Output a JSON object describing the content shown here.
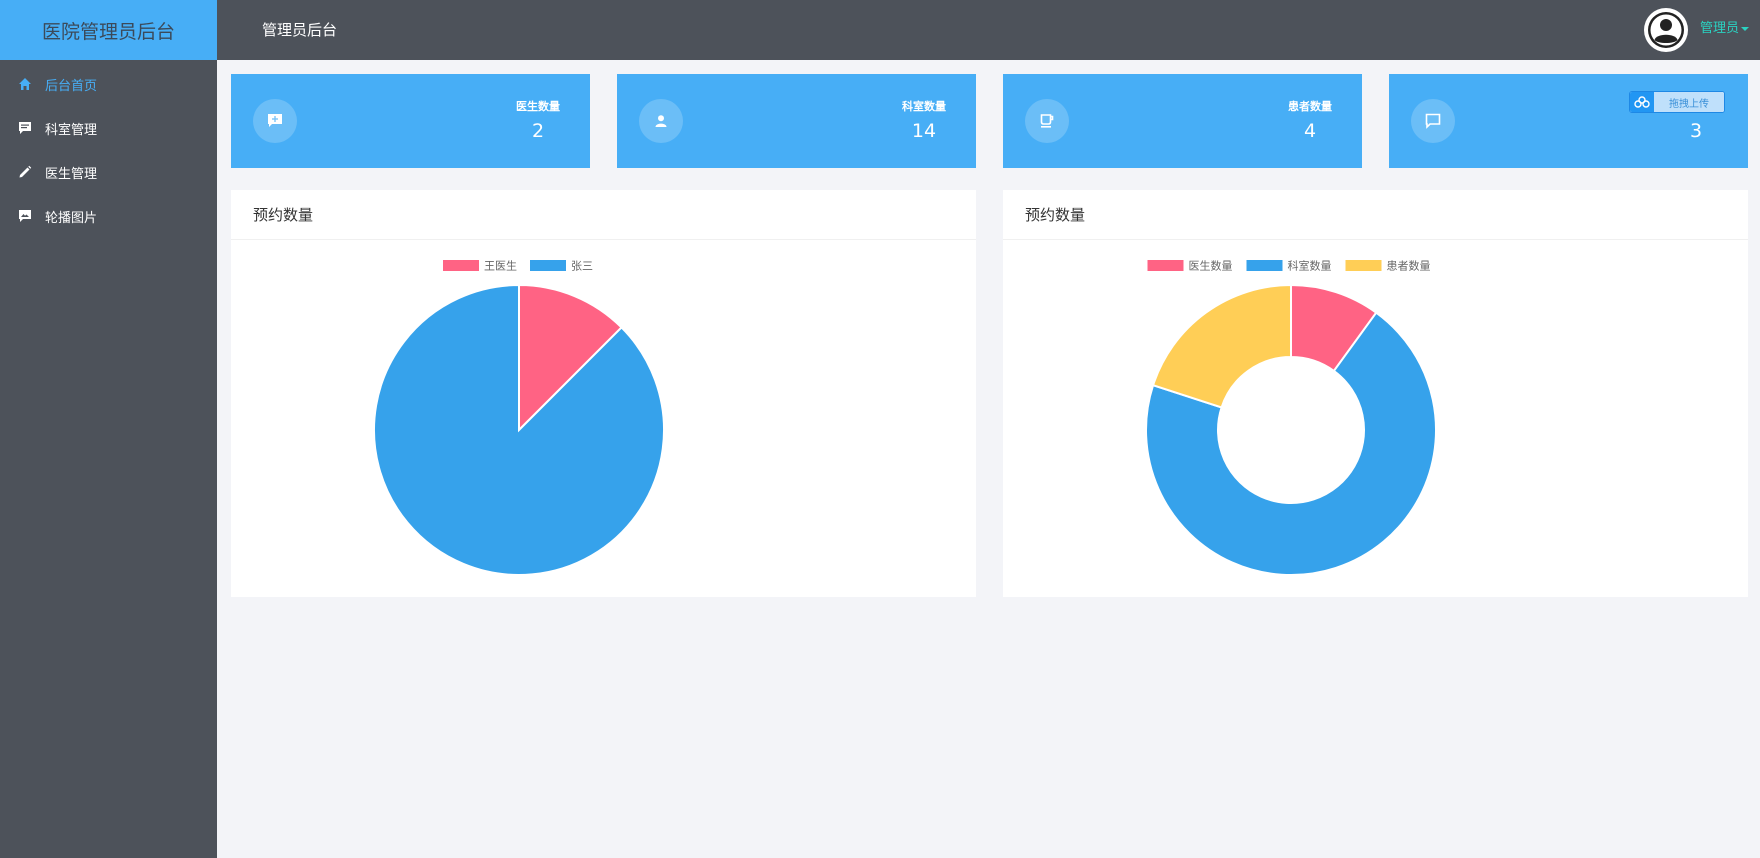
{
  "app": {
    "brand": "医院管理员后台",
    "header_title": "管理员后台",
    "user_menu": "管理员"
  },
  "sidebar": {
    "items": [
      {
        "label": "后台首页",
        "icon": "home-icon",
        "active": true
      },
      {
        "label": "科室管理",
        "icon": "message-icon",
        "active": false
      },
      {
        "label": "医生管理",
        "icon": "pencil-icon",
        "active": false
      },
      {
        "label": "轮播图片",
        "icon": "image-comment-icon",
        "active": false
      }
    ]
  },
  "cards": [
    {
      "label": "医生数量",
      "value": "2",
      "icon": "add-comment-icon"
    },
    {
      "label": "科室数量",
      "value": "14",
      "icon": "user-icon"
    },
    {
      "label": "患者数量",
      "value": "4",
      "icon": "coffee-cup-icon"
    },
    {
      "label": "",
      "value": "3",
      "icon": "chat-icon",
      "upload_label": "拖拽上传",
      "upload_icon": "cloud-upload-icon"
    }
  ],
  "colors": {
    "accent": "#47aef6",
    "sidebar_bg": "#4d525a",
    "pink": "#ff6384",
    "blue": "#36a2eb",
    "yellow": "#ffce56"
  },
  "chart_data": [
    {
      "type": "pie",
      "title": "预约数量",
      "categories": [
        "王医生",
        "张三"
      ],
      "values": [
        1,
        7
      ],
      "colors": [
        "#ff6384",
        "#36a2eb"
      ],
      "legend_position": "top"
    },
    {
      "type": "pie",
      "variant": "doughnut",
      "title": "预约数量",
      "categories": [
        "医生数量",
        "科室数量",
        "患者数量"
      ],
      "values": [
        2,
        14,
        4
      ],
      "colors": [
        "#ff6384",
        "#36a2eb",
        "#ffce56"
      ],
      "legend_position": "top"
    }
  ]
}
